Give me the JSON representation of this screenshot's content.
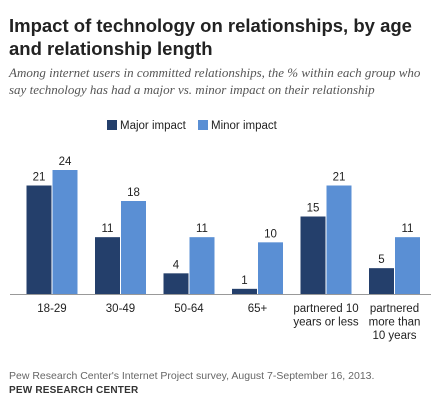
{
  "title": "Impact of technology on relationships, by age and relationship length",
  "subtitle": "Among internet users in committed relationships, the % within each group who say technology has had a major vs. minor impact on their relationship",
  "source": "Pew Research Center's Internet Project survey, August 7-September 16, 2013.",
  "organization": "PEW RESEARCH CENTER",
  "colors": {
    "major": "#243f6b",
    "minor": "#5a8fd4",
    "text": "#222222",
    "axis": "#999999"
  },
  "chart_data": {
    "type": "bar",
    "categories": [
      [
        "18-29"
      ],
      [
        "30-49"
      ],
      [
        "50-64"
      ],
      [
        "65+"
      ],
      [
        "partnered 10",
        "years or less"
      ],
      [
        "partnered",
        "more than",
        "10 years"
      ]
    ],
    "series": [
      {
        "name": "Major impact",
        "values": [
          21,
          11,
          4,
          1,
          15,
          5
        ]
      },
      {
        "name": "Minor impact",
        "values": [
          24,
          18,
          11,
          10,
          21,
          11
        ]
      }
    ],
    "ylim": [
      0,
      24
    ],
    "legend": "top-center",
    "grid": false,
    "xlabel": "",
    "ylabel": ""
  }
}
